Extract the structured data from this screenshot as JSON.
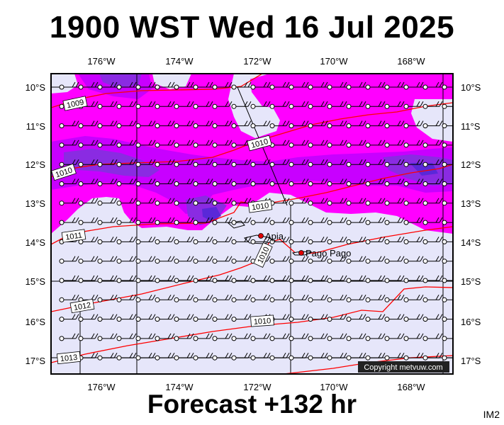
{
  "title": "1900 WST Wed 16 Jul 2025",
  "footer": "Forecast +132 hr",
  "image_code": "IM2",
  "copyright": "Copyright metvuw.com",
  "lon_ticks": [
    "176°W",
    "174°W",
    "172°W",
    "170°W",
    "168°W"
  ],
  "lat_ticks": [
    "10°S",
    "11°S",
    "12°S",
    "13°S",
    "14°S",
    "15°S",
    "16°S",
    "17°S"
  ],
  "isobar_labels": [
    "1009",
    "1010",
    "1010",
    "1010",
    "1011",
    "1010",
    "1012",
    "1010",
    "1013"
  ],
  "places": [
    "Apia",
    "Pago Pago"
  ],
  "colors": {
    "background": "#e6e6fa",
    "rain_light": "#ff00ff",
    "rain_mid": "#c800ff",
    "rain_heavy": "#8a2be2",
    "rain_max": "#5a28d8",
    "isobar": "#ff0000"
  },
  "icons": [
    "wind-barb-icon",
    "city-marker-icon",
    "island-shape-icon"
  ]
}
